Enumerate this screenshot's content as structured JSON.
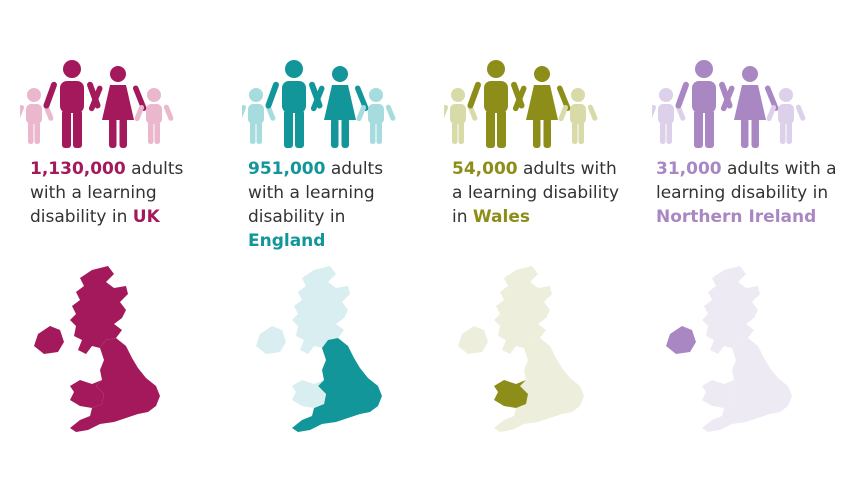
{
  "panels": [
    {
      "id": "uk",
      "color": "#A3195B",
      "light_color": "#EAB7CD",
      "map_base_color": "#A3195B",
      "number": "1,130,000",
      "text_before": " adults with a learning disability in ",
      "place": "UK",
      "highlight_region": "uk"
    },
    {
      "id": "england",
      "color": "#12969A",
      "light_color": "#A6DCDD",
      "map_base_color": "#D8EEF0",
      "number": "951,000",
      "text_before": " adults with a learning disability in ",
      "place": "England",
      "highlight_region": "england"
    },
    {
      "id": "wales",
      "color": "#8C8E19",
      "light_color": "#D8DAA8",
      "map_base_color": "#EEEEDC",
      "number": "54,000",
      "text_before": " adults with a learning disability in ",
      "place": "Wales",
      "highlight_region": "wales"
    },
    {
      "id": "northern-ireland",
      "color": "#A987C3",
      "light_color": "#DDD0EA",
      "map_base_color": "#EEEAF4",
      "number": "31,000",
      "text_before": " adults with a learning disability in ",
      "place": "Northern Ireland",
      "highlight_region": "northern-ireland"
    }
  ]
}
